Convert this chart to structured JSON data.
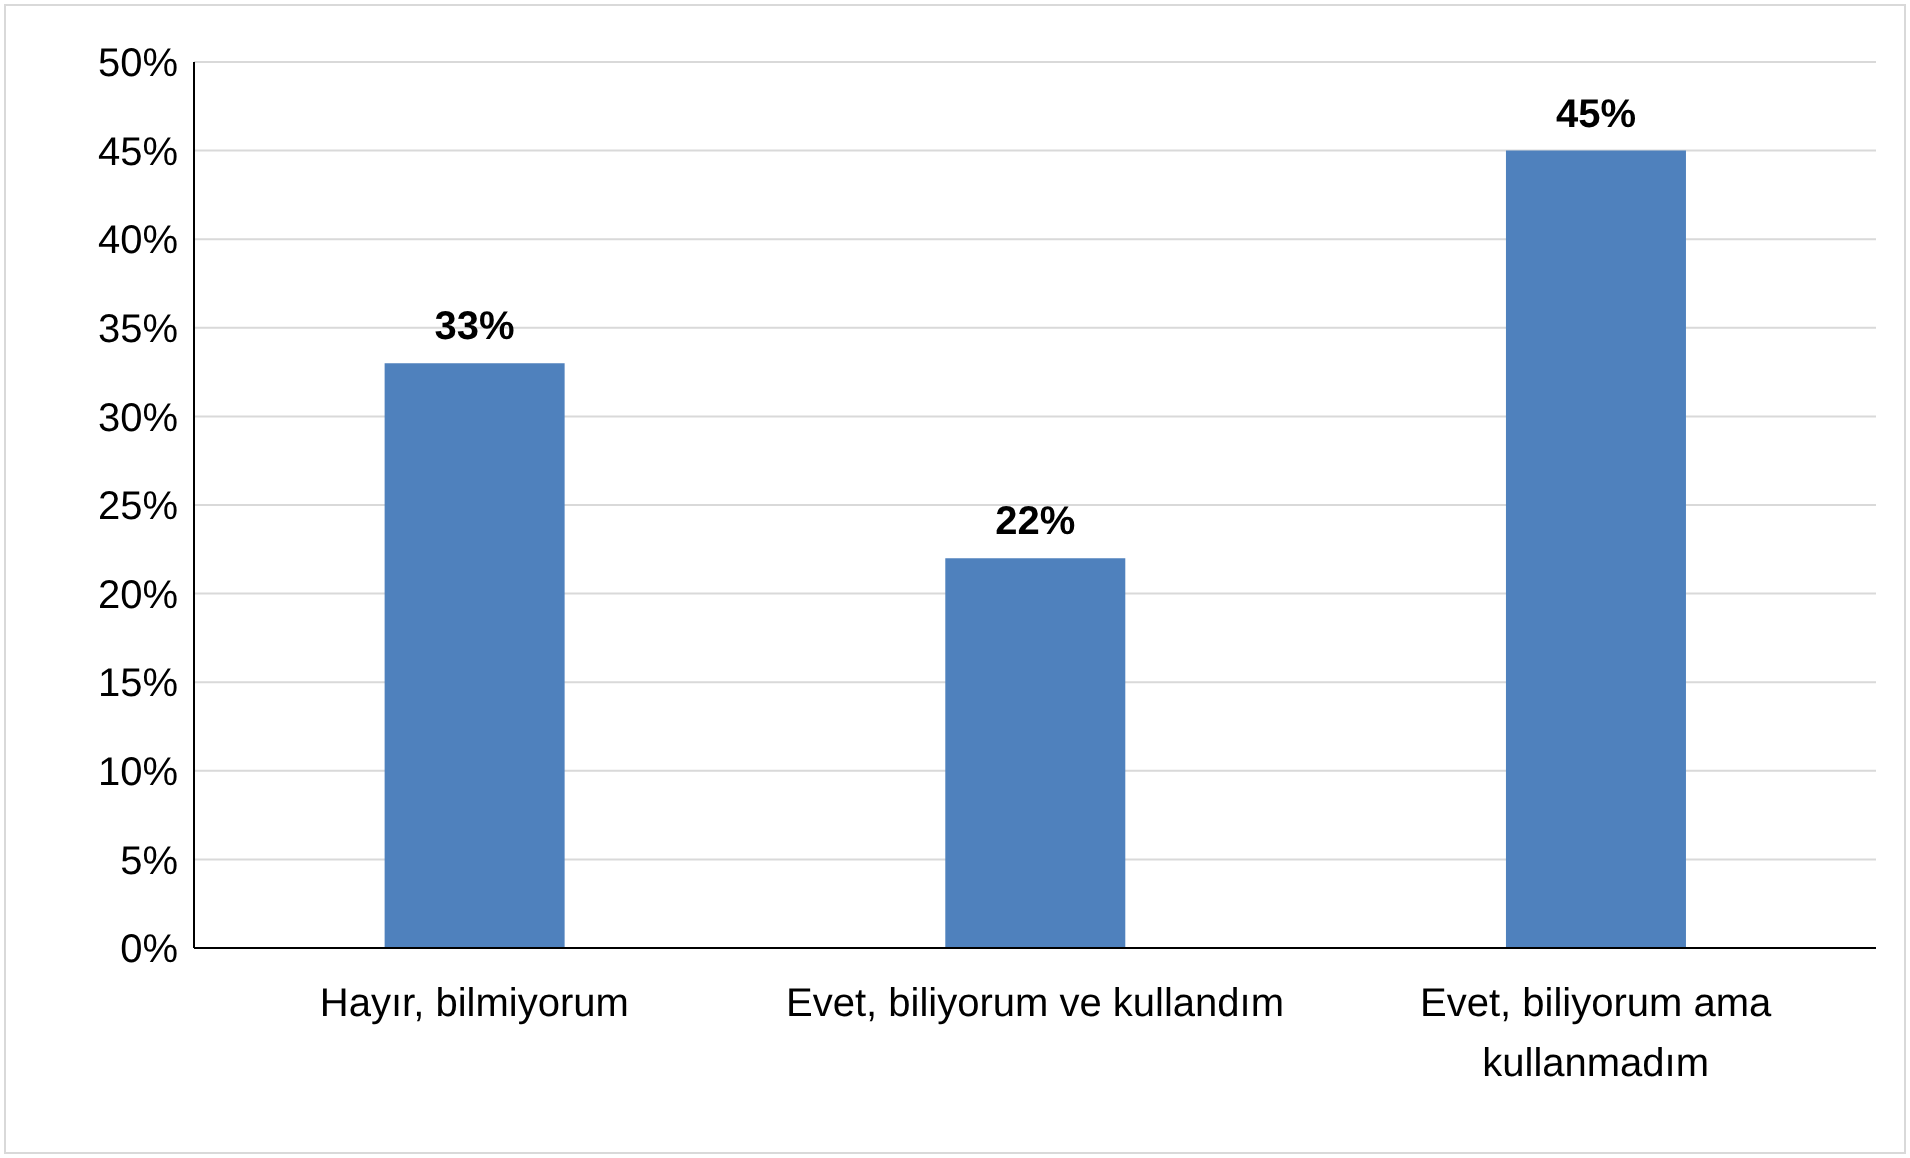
{
  "chart_data": {
    "type": "bar",
    "categories": [
      "Hayır, bilmiyorum",
      "Evet, biliyorum ve kullandım",
      "Evet, biliyorum ama kullanmadım"
    ],
    "values": [
      33,
      22,
      45
    ],
    "value_labels": [
      "33%",
      "22%",
      "45%"
    ],
    "color": "#4f81bd",
    "ylim": [
      0,
      50
    ],
    "yticks": [
      {
        "value": 0,
        "label": "0%"
      },
      {
        "value": 5,
        "label": "5%"
      },
      {
        "value": 10,
        "label": "10%"
      },
      {
        "value": 15,
        "label": "15%"
      },
      {
        "value": 20,
        "label": "20%"
      },
      {
        "value": 25,
        "label": "25%"
      },
      {
        "value": 30,
        "label": "30%"
      },
      {
        "value": 35,
        "label": "35%"
      },
      {
        "value": 40,
        "label": "40%"
      },
      {
        "value": 45,
        "label": "45%"
      },
      {
        "value": 50,
        "label": "50%"
      }
    ],
    "grid": "y"
  }
}
